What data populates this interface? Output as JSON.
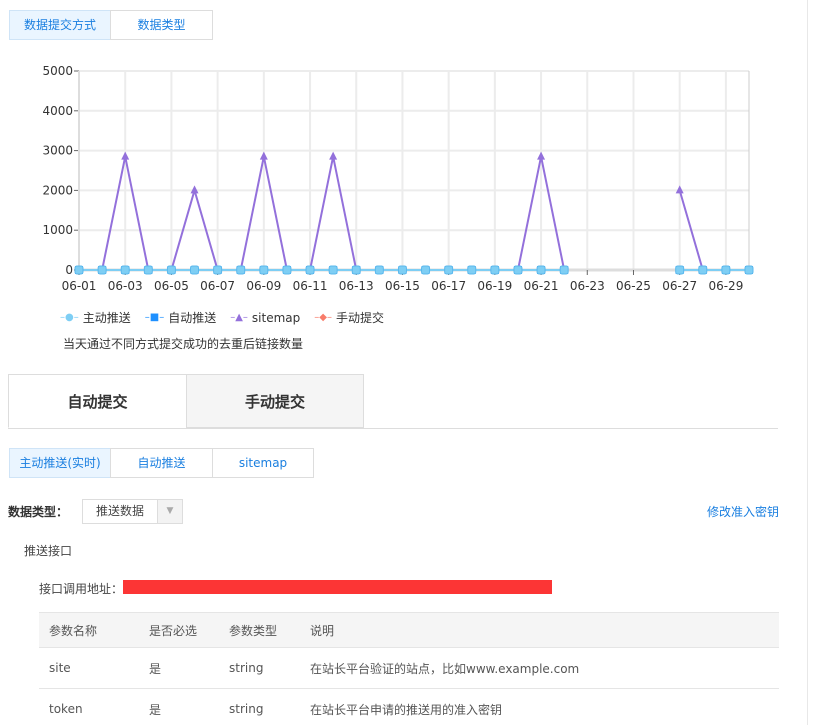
{
  "top_tabs": [
    {
      "label": "数据提交方式",
      "active": true
    },
    {
      "label": "数据类型",
      "active": false
    }
  ],
  "chart_data": {
    "type": "line",
    "x": [
      "06-01",
      "06-02",
      "06-03",
      "06-04",
      "06-05",
      "06-06",
      "06-07",
      "06-08",
      "06-09",
      "06-10",
      "06-11",
      "06-12",
      "06-13",
      "06-14",
      "06-15",
      "06-16",
      "06-17",
      "06-18",
      "06-19",
      "06-20",
      "06-21",
      "06-22",
      "06-23",
      "06-24",
      "06-25",
      "06-26",
      "06-27",
      "06-28",
      "06-29",
      "06-30"
    ],
    "x_tick_labels": [
      "06-01",
      "06-03",
      "06-05",
      "06-07",
      "06-09",
      "06-11",
      "06-13",
      "06-15",
      "06-17",
      "06-19",
      "06-21",
      "06-23",
      "06-25",
      "06-27",
      "06-29"
    ],
    "y_ticks": [
      "0",
      "1000",
      "2000",
      "3000",
      "4000",
      "5000"
    ],
    "ylim": [
      0,
      5000
    ],
    "grid": true,
    "legend_position": "bottom-left",
    "series": [
      {
        "name": "主动推送",
        "color": "#7ecef4",
        "marker": "circle",
        "values": [
          0,
          0,
          0,
          0,
          0,
          0,
          0,
          0,
          0,
          0,
          0,
          0,
          0,
          0,
          0,
          0,
          0,
          0,
          0,
          0,
          0,
          0,
          null,
          null,
          null,
          null,
          0,
          0,
          0,
          0
        ]
      },
      {
        "name": "自动推送",
        "color": "#1e90ff",
        "marker": "square",
        "values": [
          0,
          0,
          0,
          0,
          0,
          0,
          0,
          0,
          0,
          0,
          0,
          0,
          0,
          0,
          0,
          0,
          0,
          0,
          0,
          0,
          0,
          0,
          null,
          null,
          null,
          null,
          0,
          0,
          0,
          0
        ]
      },
      {
        "name": "sitemap",
        "color": "#9370db",
        "marker": "triangle",
        "values": [
          0,
          0,
          2850,
          0,
          0,
          2000,
          0,
          0,
          2850,
          0,
          0,
          2850,
          0,
          0,
          0,
          0,
          0,
          0,
          0,
          0,
          2850,
          0,
          null,
          null,
          null,
          null,
          2000,
          0,
          0,
          0
        ]
      },
      {
        "name": "手动提交",
        "color": "#f87c6a",
        "marker": "diamond",
        "values": [
          null,
          null,
          null,
          null,
          null,
          null,
          null,
          null,
          null,
          null,
          null,
          null,
          null,
          null,
          null,
          null,
          null,
          null,
          null,
          null,
          null,
          null,
          null,
          null,
          null,
          null,
          null,
          null,
          null,
          null
        ]
      }
    ],
    "caption": "当天通过不同方式提交成功的去重后链接数量"
  },
  "big_tabs": [
    {
      "label": "自动提交",
      "active": true
    },
    {
      "label": "手动提交",
      "active": false
    }
  ],
  "sub_tabs": [
    {
      "label": "主动推送(实时)",
      "active": true
    },
    {
      "label": "自动推送",
      "active": false
    },
    {
      "label": "sitemap",
      "active": false
    }
  ],
  "data_type": {
    "label": "数据类型：",
    "value": "推送数据"
  },
  "modify_key_link": "修改准入密钥",
  "section_title": "推送接口",
  "api_url_label": "接口调用地址：",
  "redaction_color": "#fc3535",
  "table": {
    "headers": [
      "参数名称",
      "是否必选",
      "参数类型",
      "说明"
    ],
    "rows": [
      [
        "site",
        "是",
        "string",
        "在站长平台验证的站点，比如www.example.com"
      ],
      [
        "token",
        "是",
        "string",
        "在站长平台申请的推送用的准入密钥"
      ]
    ]
  }
}
